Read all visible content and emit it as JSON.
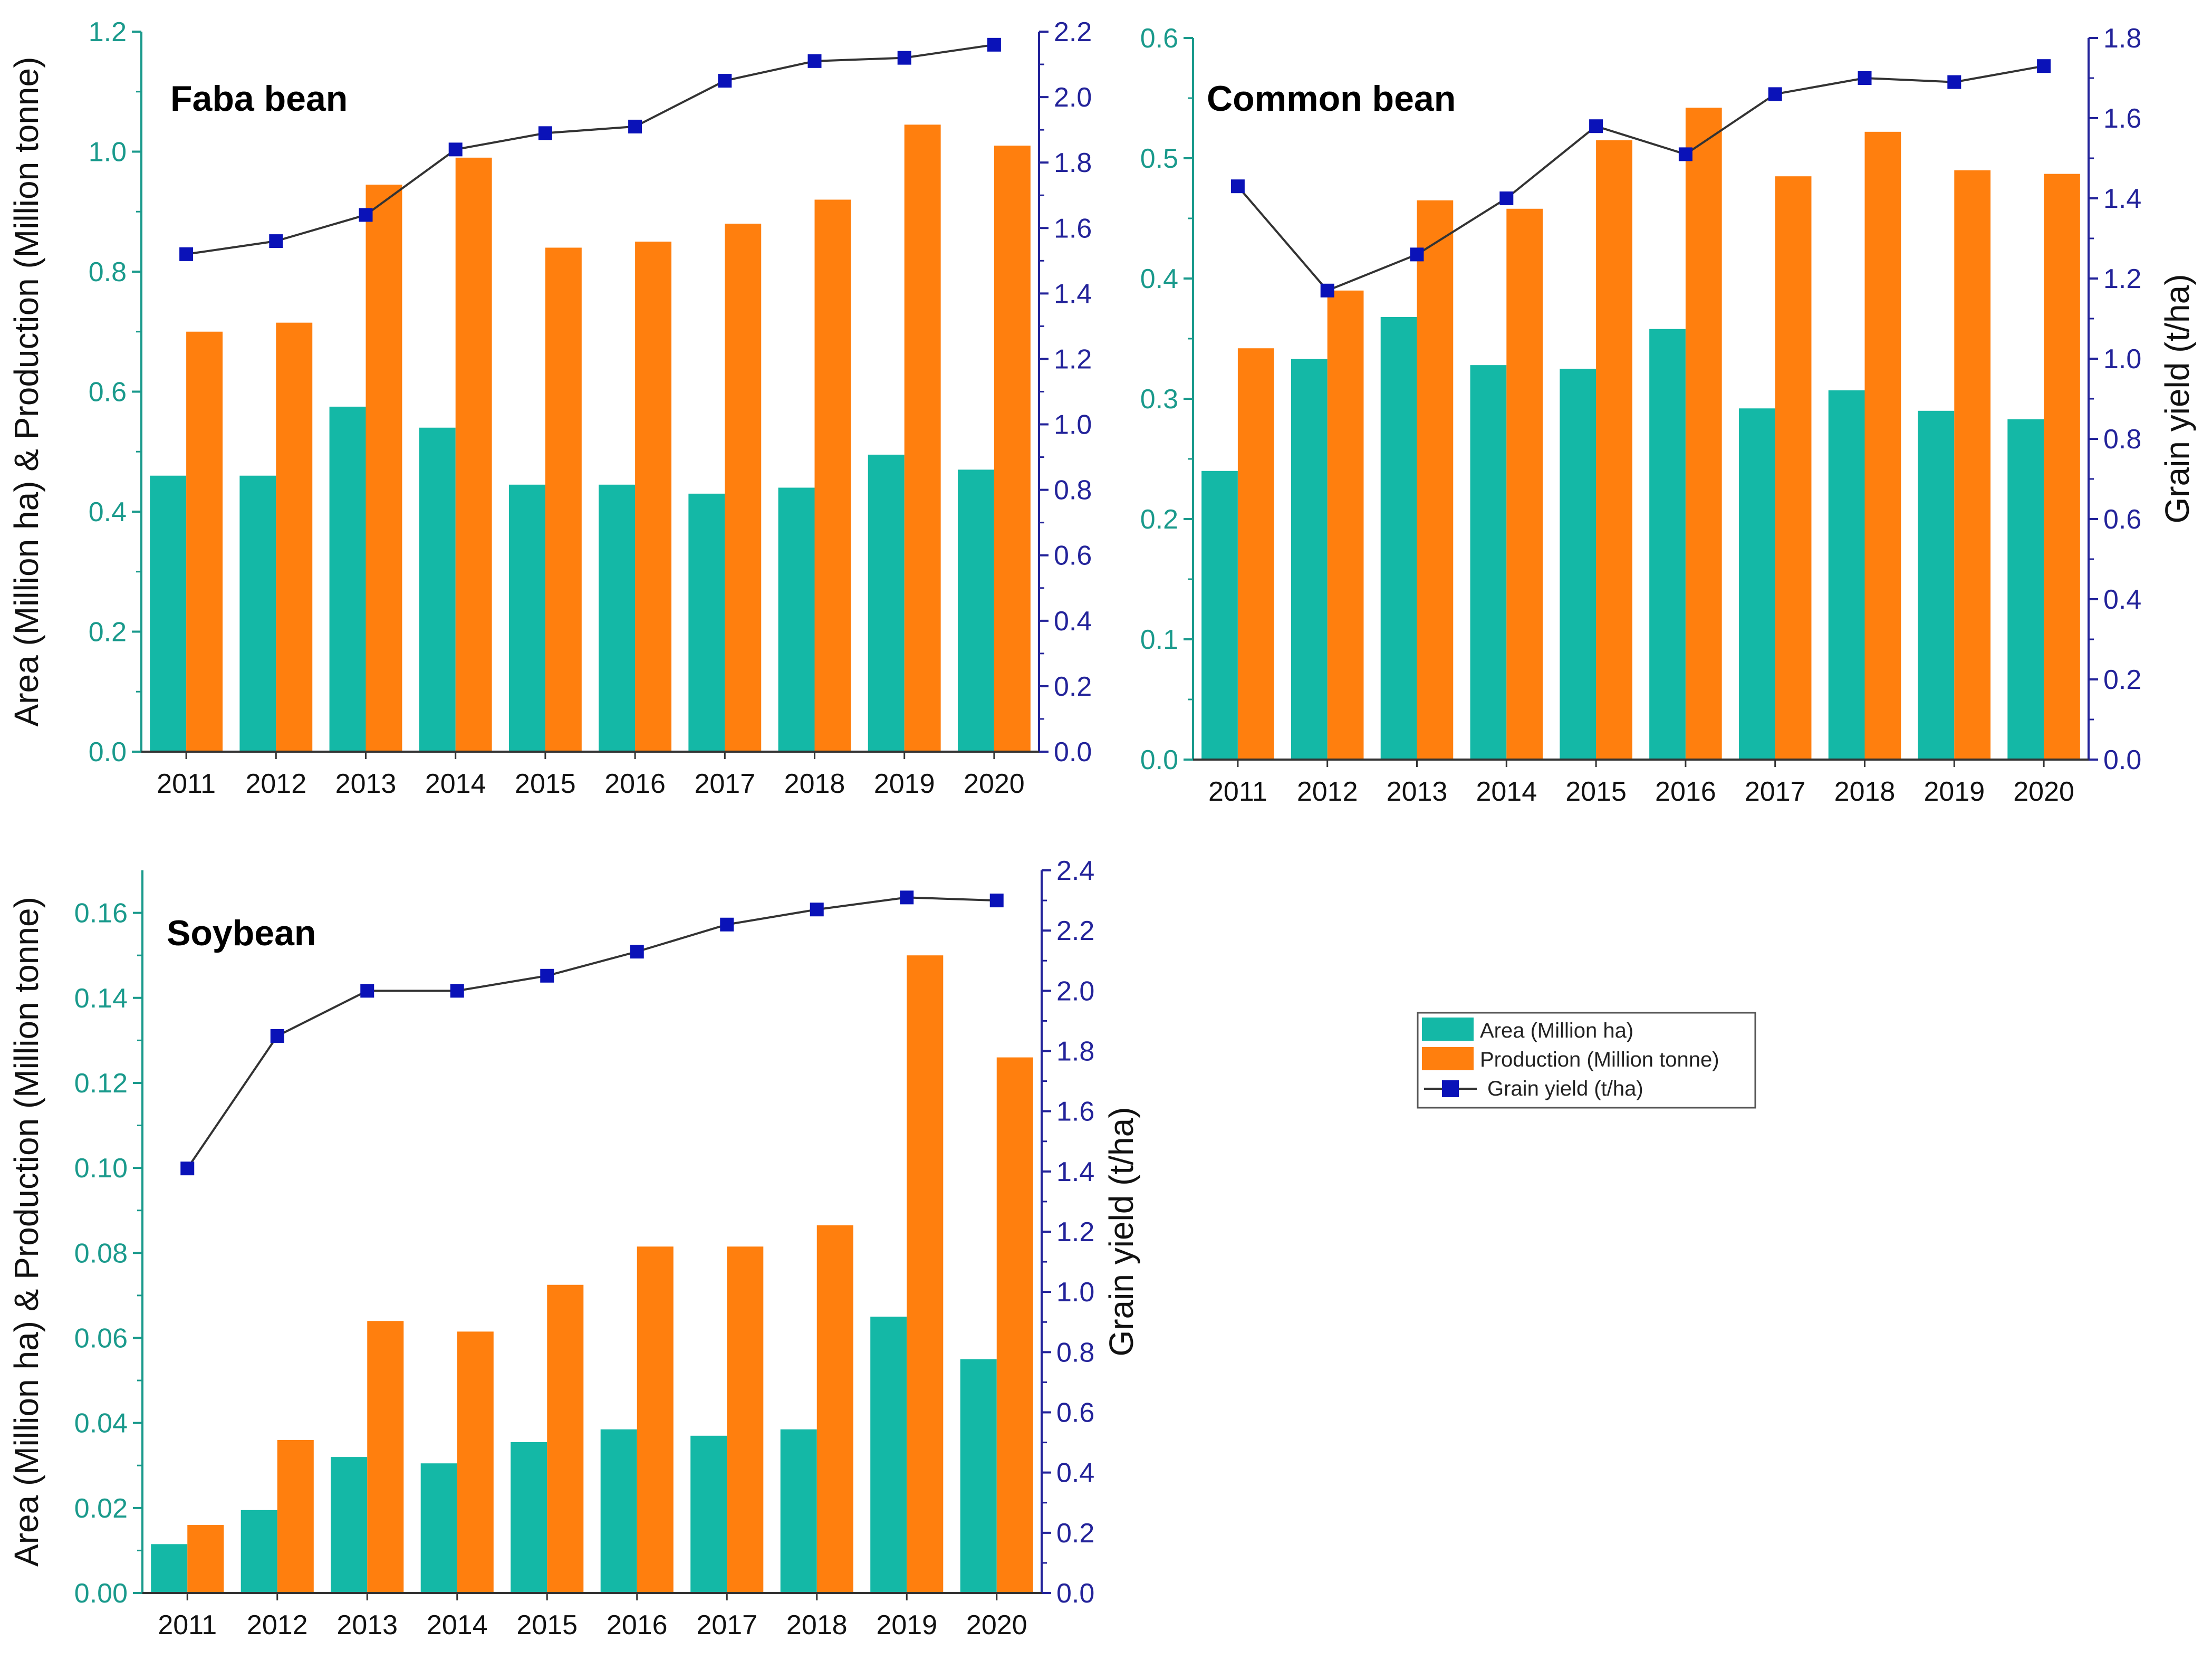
{
  "figure": {
    "colors": {
      "area": "#14b8a6",
      "production": "#ff7f0e",
      "yield_line": "#333333",
      "yield_marker": "#0a12b8",
      "left_axis": "#1a9a8c",
      "right_axis": "#23239a"
    },
    "legend": {
      "area_label": "Area (Million ha)",
      "production_label": "Production (Million tonne)",
      "yield_label": "Grain yield (t/ha)"
    }
  },
  "chart_data": [
    {
      "id": "faba",
      "type": "bar",
      "title": "Faba bean",
      "categories": [
        "2011",
        "2012",
        "2013",
        "2014",
        "2015",
        "2016",
        "2017",
        "2018",
        "2019",
        "2020"
      ],
      "xlabel": "",
      "ylabel": "Area (Million ha) & Production (Million tonne)",
      "ylabel_right": "",
      "ylim": [
        0,
        1.2
      ],
      "yticks": [
        0.0,
        0.2,
        0.4,
        0.6,
        0.8,
        1.0,
        1.2
      ],
      "ytick_labels": [
        "0.0",
        "0.2",
        "0.4",
        "0.6",
        "0.8",
        "1.0",
        "1.2"
      ],
      "ylim_right": [
        0,
        2.2
      ],
      "yticks_right": [
        0.0,
        0.2,
        0.4,
        0.6,
        0.8,
        1.0,
        1.2,
        1.4,
        1.6,
        1.8,
        2.0,
        2.2
      ],
      "ytick_labels_right": [
        "0.0",
        "0.2",
        "0.4",
        "0.6",
        "0.8",
        "1.0",
        "1.2",
        "1.4",
        "1.6",
        "1.8",
        "2.0",
        "2.2"
      ],
      "series": [
        {
          "name": "Area (Million ha)",
          "kind": "bar",
          "values": [
            0.46,
            0.46,
            0.575,
            0.54,
            0.445,
            0.445,
            0.43,
            0.44,
            0.495,
            0.47
          ]
        },
        {
          "name": "Production (Million tonne)",
          "kind": "bar",
          "values": [
            0.7,
            0.715,
            0.945,
            0.99,
            0.84,
            0.85,
            0.88,
            0.92,
            1.045,
            1.01
          ]
        },
        {
          "name": "Grain yield (t/ha)",
          "kind": "line",
          "axis": "right",
          "values": [
            1.52,
            1.56,
            1.64,
            1.84,
            1.89,
            1.91,
            2.05,
            2.11,
            2.12,
            2.16
          ]
        }
      ]
    },
    {
      "id": "common",
      "type": "bar",
      "title": "Common bean",
      "categories": [
        "2011",
        "2012",
        "2013",
        "2014",
        "2015",
        "2016",
        "2017",
        "2018",
        "2019",
        "2020"
      ],
      "xlabel": "",
      "ylabel": "",
      "ylabel_right": "Grain yield (t/ha)",
      "ylim": [
        0,
        0.6
      ],
      "yticks": [
        0.0,
        0.1,
        0.2,
        0.3,
        0.4,
        0.5,
        0.6
      ],
      "ytick_labels": [
        "0.0",
        "0.1",
        "0.2",
        "0.3",
        "0.4",
        "0.5",
        "0.6"
      ],
      "ylim_right": [
        0,
        1.8
      ],
      "yticks_right": [
        0.0,
        0.2,
        0.4,
        0.6,
        0.8,
        1.0,
        1.2,
        1.4,
        1.6,
        1.8
      ],
      "ytick_labels_right": [
        "0.0",
        "0.2",
        "0.4",
        "0.6",
        "0.8",
        "1.0",
        "1.2",
        "1.4",
        "1.6",
        "1.8"
      ],
      "series": [
        {
          "name": "Area (Million ha)",
          "kind": "bar",
          "values": [
            0.24,
            0.333,
            0.368,
            0.328,
            0.325,
            0.358,
            0.292,
            0.307,
            0.29,
            0.283
          ]
        },
        {
          "name": "Production (Million tonne)",
          "kind": "bar",
          "values": [
            0.342,
            0.39,
            0.465,
            0.458,
            0.515,
            0.542,
            0.485,
            0.522,
            0.49,
            0.487
          ]
        },
        {
          "name": "Grain yield (t/ha)",
          "kind": "line",
          "axis": "right",
          "values": [
            1.43,
            1.17,
            1.26,
            1.4,
            1.58,
            1.51,
            1.66,
            1.7,
            1.69,
            1.73
          ]
        }
      ]
    },
    {
      "id": "soy",
      "type": "bar",
      "title": "Soybean",
      "categories": [
        "2011",
        "2012",
        "2013",
        "2014",
        "2015",
        "2016",
        "2017",
        "2018",
        "2019",
        "2020"
      ],
      "xlabel": "",
      "ylabel": "Area (Million ha) & Production (Million tonne)",
      "ylabel_right": "Grain yield (t/ha)",
      "ylim": [
        0,
        0.17
      ],
      "yticks": [
        0.0,
        0.02,
        0.04,
        0.06,
        0.08,
        0.1,
        0.12,
        0.14,
        0.16
      ],
      "ytick_labels": [
        "0.00",
        "0.02",
        "0.04",
        "0.06",
        "0.08",
        "0.10",
        "0.12",
        "0.14",
        "0.16"
      ],
      "ylim_right": [
        0,
        2.4
      ],
      "yticks_right": [
        0.0,
        0.2,
        0.4,
        0.6,
        0.8,
        1.0,
        1.2,
        1.4,
        1.6,
        1.8,
        2.0,
        2.2,
        2.4
      ],
      "ytick_labels_right": [
        "0.0",
        "0.2",
        "0.4",
        "0.6",
        "0.8",
        "1.0",
        "1.2",
        "1.4",
        "1.6",
        "1.8",
        "2.0",
        "2.2",
        "2.4"
      ],
      "series": [
        {
          "name": "Area (Million ha)",
          "kind": "bar",
          "values": [
            0.0115,
            0.0195,
            0.032,
            0.0305,
            0.0355,
            0.0385,
            0.037,
            0.0385,
            0.065,
            0.055
          ]
        },
        {
          "name": "Production (Million tonne)",
          "kind": "bar",
          "values": [
            0.016,
            0.036,
            0.064,
            0.0615,
            0.0725,
            0.0815,
            0.0815,
            0.0865,
            0.15,
            0.126
          ]
        },
        {
          "name": "Grain yield (t/ha)",
          "kind": "line",
          "axis": "right",
          "values": [
            1.41,
            1.85,
            2.0,
            2.0,
            2.05,
            2.13,
            2.22,
            2.27,
            2.31,
            2.3
          ]
        }
      ]
    }
  ]
}
